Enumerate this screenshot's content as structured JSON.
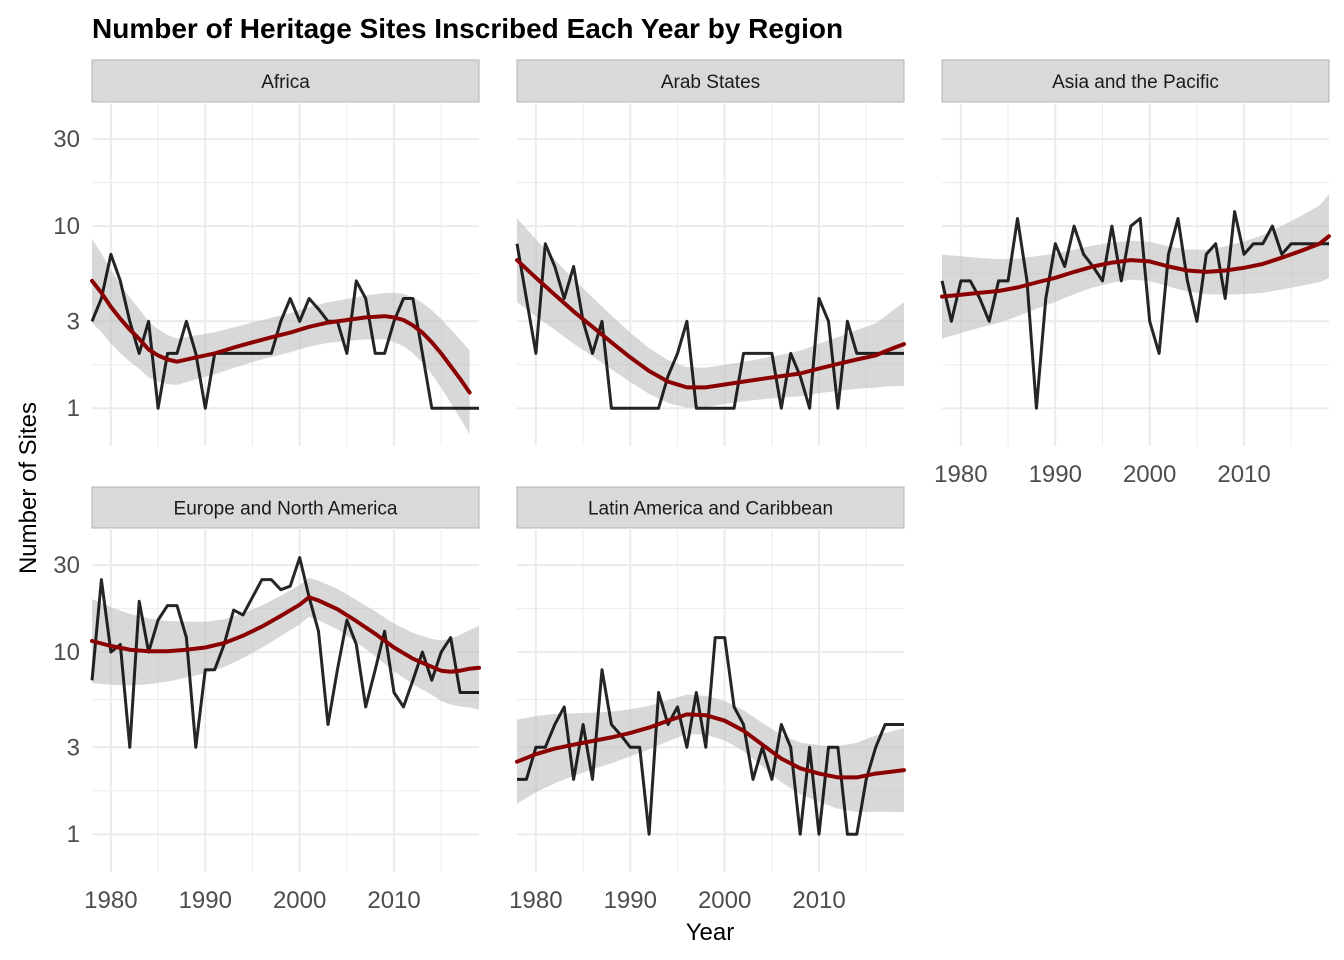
{
  "chart_data": {
    "type": "line",
    "title": "Number of Heritage Sites Inscribed Each Year by Region",
    "xlabel": "Year",
    "ylabel": "Number of Sites",
    "y_scale": "log10",
    "xlim": [
      1978,
      2019
    ],
    "ylim": [
      0.62,
      48
    ],
    "x_ticks": [
      1980,
      1990,
      2000,
      2010
    ],
    "y_ticks": [
      1,
      3,
      10,
      30
    ],
    "x_tick_labels": [
      "1980",
      "1990",
      "2000",
      "2010"
    ],
    "y_tick_labels": [
      "1",
      "3",
      "10",
      "30"
    ],
    "grid": true,
    "colors": {
      "line": "#000000",
      "smooth": "#8b0000",
      "ribbon": "#bebebe",
      "strip_fill": "#d9d9d9",
      "strip_border": "#b3b3b3",
      "grid": "#ebebeb"
    },
    "panels": [
      {
        "region": "Africa",
        "x": [
          1978,
          1979,
          1980,
          1981,
          1982,
          1983,
          1984,
          1985,
          1986,
          1987,
          1988,
          1989,
          1990,
          1991,
          1992,
          1993,
          1994,
          1995,
          1996,
          1997,
          1998,
          1999,
          2000,
          2001,
          2002,
          2003,
          2004,
          2005,
          2006,
          2007,
          2008,
          2009,
          2010,
          2011,
          2012,
          2013,
          2014,
          2015,
          2016,
          2017,
          2018,
          2019
        ],
        "y": [
          3,
          4,
          7,
          5,
          3,
          2,
          3,
          1,
          2,
          2,
          3,
          2,
          1,
          2,
          2,
          2,
          2,
          2,
          2,
          2,
          3,
          4,
          3,
          4,
          3.5,
          3,
          3,
          2,
          5,
          4,
          2,
          2,
          3,
          4,
          4,
          2,
          1,
          1,
          1,
          1,
          1,
          1
        ],
        "smooth": [
          5,
          4.3,
          3.6,
          3.1,
          2.7,
          2.4,
          2.1,
          1.95,
          1.85,
          1.8,
          1.9,
          2,
          2.15,
          2.3,
          2.45,
          2.6,
          2.8,
          2.95,
          3.05,
          3.15,
          3.2,
          3.15,
          3.05,
          2.85,
          2.6,
          2.3,
          2,
          1.7,
          1.45,
          1.22
        ],
        "smooth_x": [
          1978,
          1979,
          1980,
          1981,
          1982,
          1983,
          1984,
          1985,
          1986,
          1987,
          1989,
          1991,
          1993,
          1995,
          1997,
          1999,
          2001,
          2003,
          2005,
          2007,
          2009,
          2010,
          2011,
          2012,
          2013,
          2014,
          2015,
          2016,
          2017,
          2018
        ]
      },
      {
        "region": "Arab States",
        "x": [
          1978,
          1979,
          1980,
          1981,
          1982,
          1983,
          1984,
          1985,
          1986,
          1987,
          1988,
          1989,
          1990,
          1991,
          1992,
          1993,
          1994,
          1995,
          1996,
          1997,
          1998,
          1999,
          2000,
          2001,
          2002,
          2003,
          2004,
          2005,
          2006,
          2007,
          2008,
          2009,
          2010,
          2011,
          2012,
          2013,
          2014,
          2015,
          2016,
          2017,
          2018,
          2019
        ],
        "y": [
          8,
          4,
          2,
          8,
          6,
          4,
          6,
          3,
          2,
          3,
          1,
          1,
          1,
          1,
          1,
          1,
          1.5,
          2,
          3,
          1,
          1,
          1,
          1,
          1,
          2,
          2,
          2,
          2,
          1,
          2,
          1.5,
          1,
          4,
          3,
          1,
          3,
          2,
          2,
          2,
          2,
          2,
          2
        ],
        "smooth": [
          6.5,
          5.2,
          4.2,
          3.4,
          2.8,
          2.3,
          1.9,
          1.6,
          1.4,
          1.3,
          1.3,
          1.35,
          1.4,
          1.45,
          1.5,
          1.55,
          1.65,
          1.75,
          1.85,
          1.95,
          2.05,
          2.15,
          2.25
        ],
        "smooth_x": [
          1978,
          1980,
          1982,
          1984,
          1986,
          1988,
          1990,
          1992,
          1994,
          1996,
          1998,
          2000,
          2002,
          2004,
          2006,
          2008,
          2010,
          2012,
          2014,
          2016,
          2017,
          2018,
          2019
        ]
      },
      {
        "region": "Asia and the Pacific",
        "x": [
          1978,
          1979,
          1980,
          1981,
          1982,
          1983,
          1984,
          1985,
          1986,
          1987,
          1988,
          1989,
          1990,
          1991,
          1992,
          1993,
          1994,
          1995,
          1996,
          1997,
          1998,
          1999,
          2000,
          2001,
          2002,
          2003,
          2004,
          2005,
          2006,
          2007,
          2008,
          2009,
          2010,
          2011,
          2012,
          2013,
          2014,
          2015,
          2016,
          2017,
          2018,
          2019
        ],
        "y": [
          5,
          3,
          5,
          5,
          4,
          3,
          5,
          5,
          11,
          5,
          1,
          4,
          8,
          6,
          10,
          7,
          6,
          5,
          10,
          5,
          10,
          11,
          3,
          2,
          7,
          11,
          5,
          3,
          7,
          8,
          4,
          12,
          7,
          8,
          8,
          10,
          7,
          8,
          8,
          8,
          8,
          8
        ],
        "smooth": [
          4.1,
          4.2,
          4.3,
          4.4,
          4.6,
          4.9,
          5.2,
          5.6,
          6,
          6.3,
          6.5,
          6.4,
          6,
          5.7,
          5.6,
          5.7,
          5.9,
          6.2,
          6.7,
          7.3,
          8,
          8.8
        ],
        "smooth_x": [
          1978,
          1980,
          1982,
          1984,
          1986,
          1988,
          1990,
          1992,
          1994,
          1996,
          1998,
          2000,
          2002,
          2004,
          2006,
          2008,
          2010,
          2012,
          2014,
          2016,
          2018,
          2019
        ]
      },
      {
        "region": "Europe and North America",
        "x": [
          1978,
          1979,
          1980,
          1981,
          1982,
          1983,
          1984,
          1985,
          1986,
          1987,
          1988,
          1989,
          1990,
          1991,
          1992,
          1993,
          1994,
          1995,
          1996,
          1997,
          1998,
          1999,
          2000,
          2001,
          2002,
          2003,
          2004,
          2005,
          2006,
          2007,
          2008,
          2009,
          2010,
          2011,
          2012,
          2013,
          2014,
          2015,
          2016,
          2017,
          2018,
          2019
        ],
        "y": [
          7,
          25,
          10,
          11,
          3,
          19,
          10,
          15,
          18,
          18,
          12,
          3,
          8,
          8,
          11,
          17,
          16,
          20,
          25,
          25,
          22,
          23,
          33,
          20,
          13,
          4,
          8,
          15,
          11,
          5,
          8,
          13,
          6,
          5,
          7,
          10,
          7,
          10,
          12,
          6,
          6,
          6
        ],
        "smooth": [
          11.5,
          10.8,
          10.3,
          10.1,
          10.1,
          10.3,
          10.6,
          11.2,
          12.3,
          13.8,
          15.8,
          18.2,
          20,
          19.2,
          17.2,
          14.8,
          12.6,
          10.6,
          9.2,
          8.3,
          7.9,
          7.8,
          7.9,
          8.1,
          8.2
        ],
        "smooth_x": [
          1978,
          1980,
          1982,
          1984,
          1986,
          1988,
          1990,
          1992,
          1994,
          1996,
          1998,
          2000,
          2001,
          2002,
          2004,
          2006,
          2008,
          2010,
          2012,
          2014,
          2015,
          2016,
          2017,
          2018,
          2019
        ]
      },
      {
        "region": "Latin America and Caribbean",
        "x": [
          1978,
          1979,
          1980,
          1981,
          1982,
          1983,
          1984,
          1985,
          1986,
          1987,
          1988,
          1989,
          1990,
          1991,
          1992,
          1993,
          1994,
          1995,
          1996,
          1997,
          1998,
          1999,
          2000,
          2001,
          2002,
          2003,
          2004,
          2005,
          2006,
          2007,
          2008,
          2009,
          2010,
          2011,
          2012,
          2013,
          2014,
          2015,
          2016,
          2017,
          2018,
          2019
        ],
        "y": [
          2,
          2,
          3,
          3,
          4,
          5,
          2,
          4,
          2,
          8,
          4,
          3.5,
          3,
          3,
          1,
          6,
          4,
          5,
          3,
          6,
          3,
          12,
          12,
          5,
          4,
          2,
          3,
          2,
          4,
          3,
          1,
          3,
          1,
          3,
          3,
          1,
          1,
          2,
          3,
          4,
          4,
          4
        ],
        "smooth": [
          2.5,
          2.75,
          2.95,
          3.1,
          3.25,
          3.4,
          3.6,
          3.85,
          4.2,
          4.55,
          4.5,
          4.2,
          3.7,
          3.1,
          2.6,
          2.3,
          2.15,
          2.05,
          2.05,
          2.15,
          2.25
        ],
        "smooth_x": [
          1978,
          1980,
          1982,
          1984,
          1986,
          1988,
          1990,
          1992,
          1994,
          1996,
          1998,
          2000,
          2002,
          2004,
          2006,
          2008,
          2010,
          2012,
          2014,
          2016,
          2019
        ]
      }
    ]
  }
}
